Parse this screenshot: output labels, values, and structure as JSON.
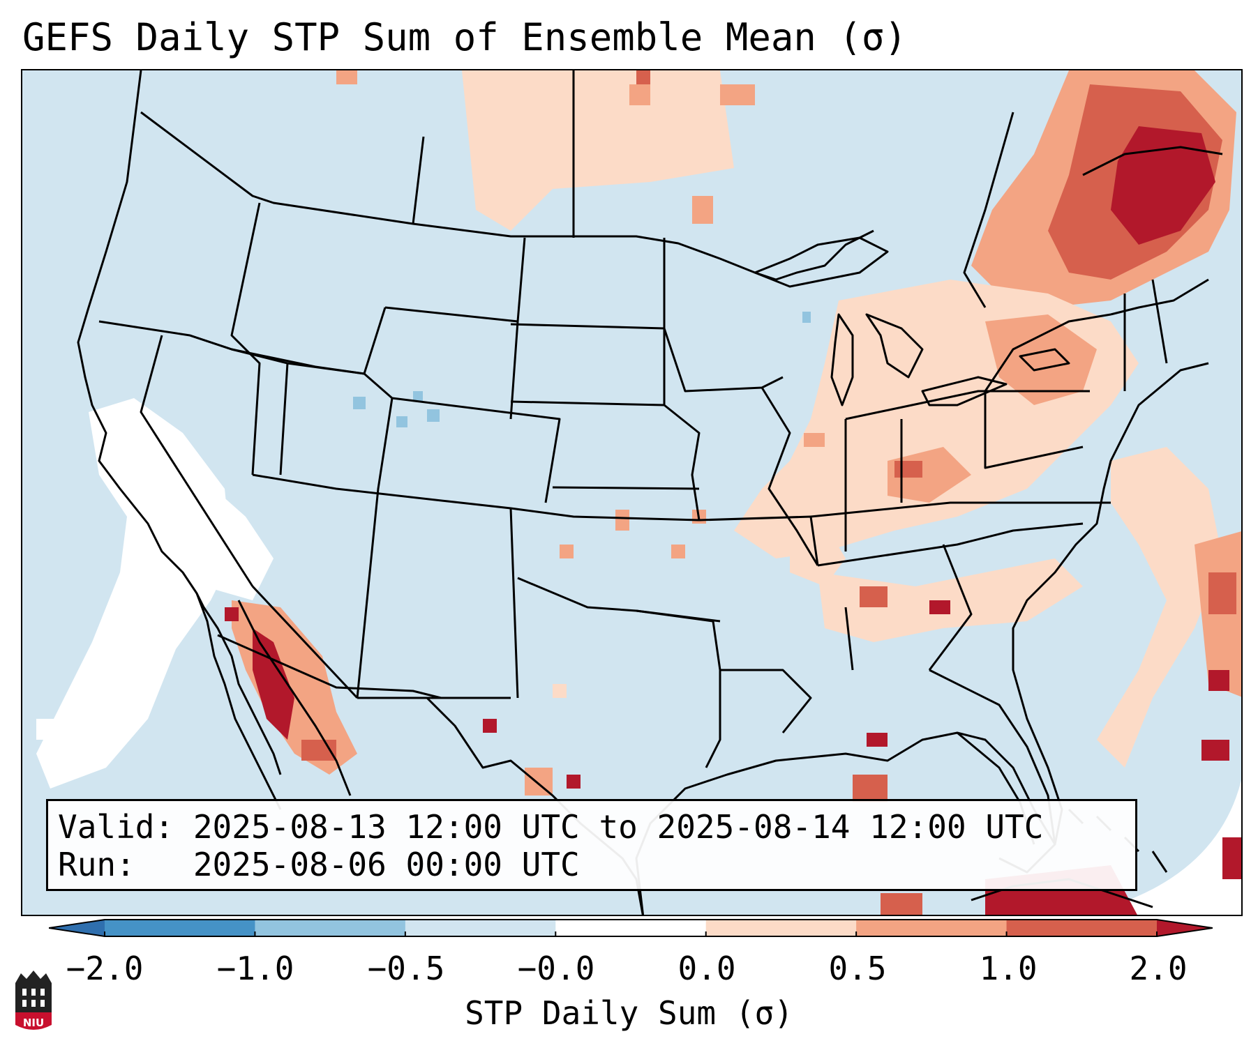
{
  "title": "GEFS Daily STP Sum of Ensemble Mean (σ)",
  "info": {
    "valid_line": "Valid: 2025-08-13 12:00 UTC to 2025-08-14 12:00 UTC",
    "run_line": "Run:   2025-08-06 00:00 UTC"
  },
  "colorbar": {
    "label": "STP Daily Sum (σ)",
    "ticks": [
      "−2.0",
      "−1.0",
      "−0.5",
      "−0.0",
      "0.0",
      "0.5",
      "1.0",
      "2.0"
    ],
    "bins": [
      {
        "range": "< -2.0",
        "color": "#2f6fae"
      },
      {
        "range": "-2.0 to -1.0",
        "color": "#4592c6"
      },
      {
        "range": "-1.0 to -0.5",
        "color": "#92c4df"
      },
      {
        "range": "-0.5 to -0.0",
        "color": "#d1e5f0"
      },
      {
        "range": "-0.0 to 0.0",
        "color": "#ffffff"
      },
      {
        "range": "0.0 to 0.5",
        "color": "#fcdbc7"
      },
      {
        "range": "0.5 to 1.0",
        "color": "#f3a483"
      },
      {
        "range": "1.0 to 2.0",
        "color": "#d6604d"
      },
      {
        "range": "> 2.0",
        "color": "#b2182b"
      }
    ]
  },
  "logo": {
    "text": "NIU",
    "color": "#c8102e"
  }
}
